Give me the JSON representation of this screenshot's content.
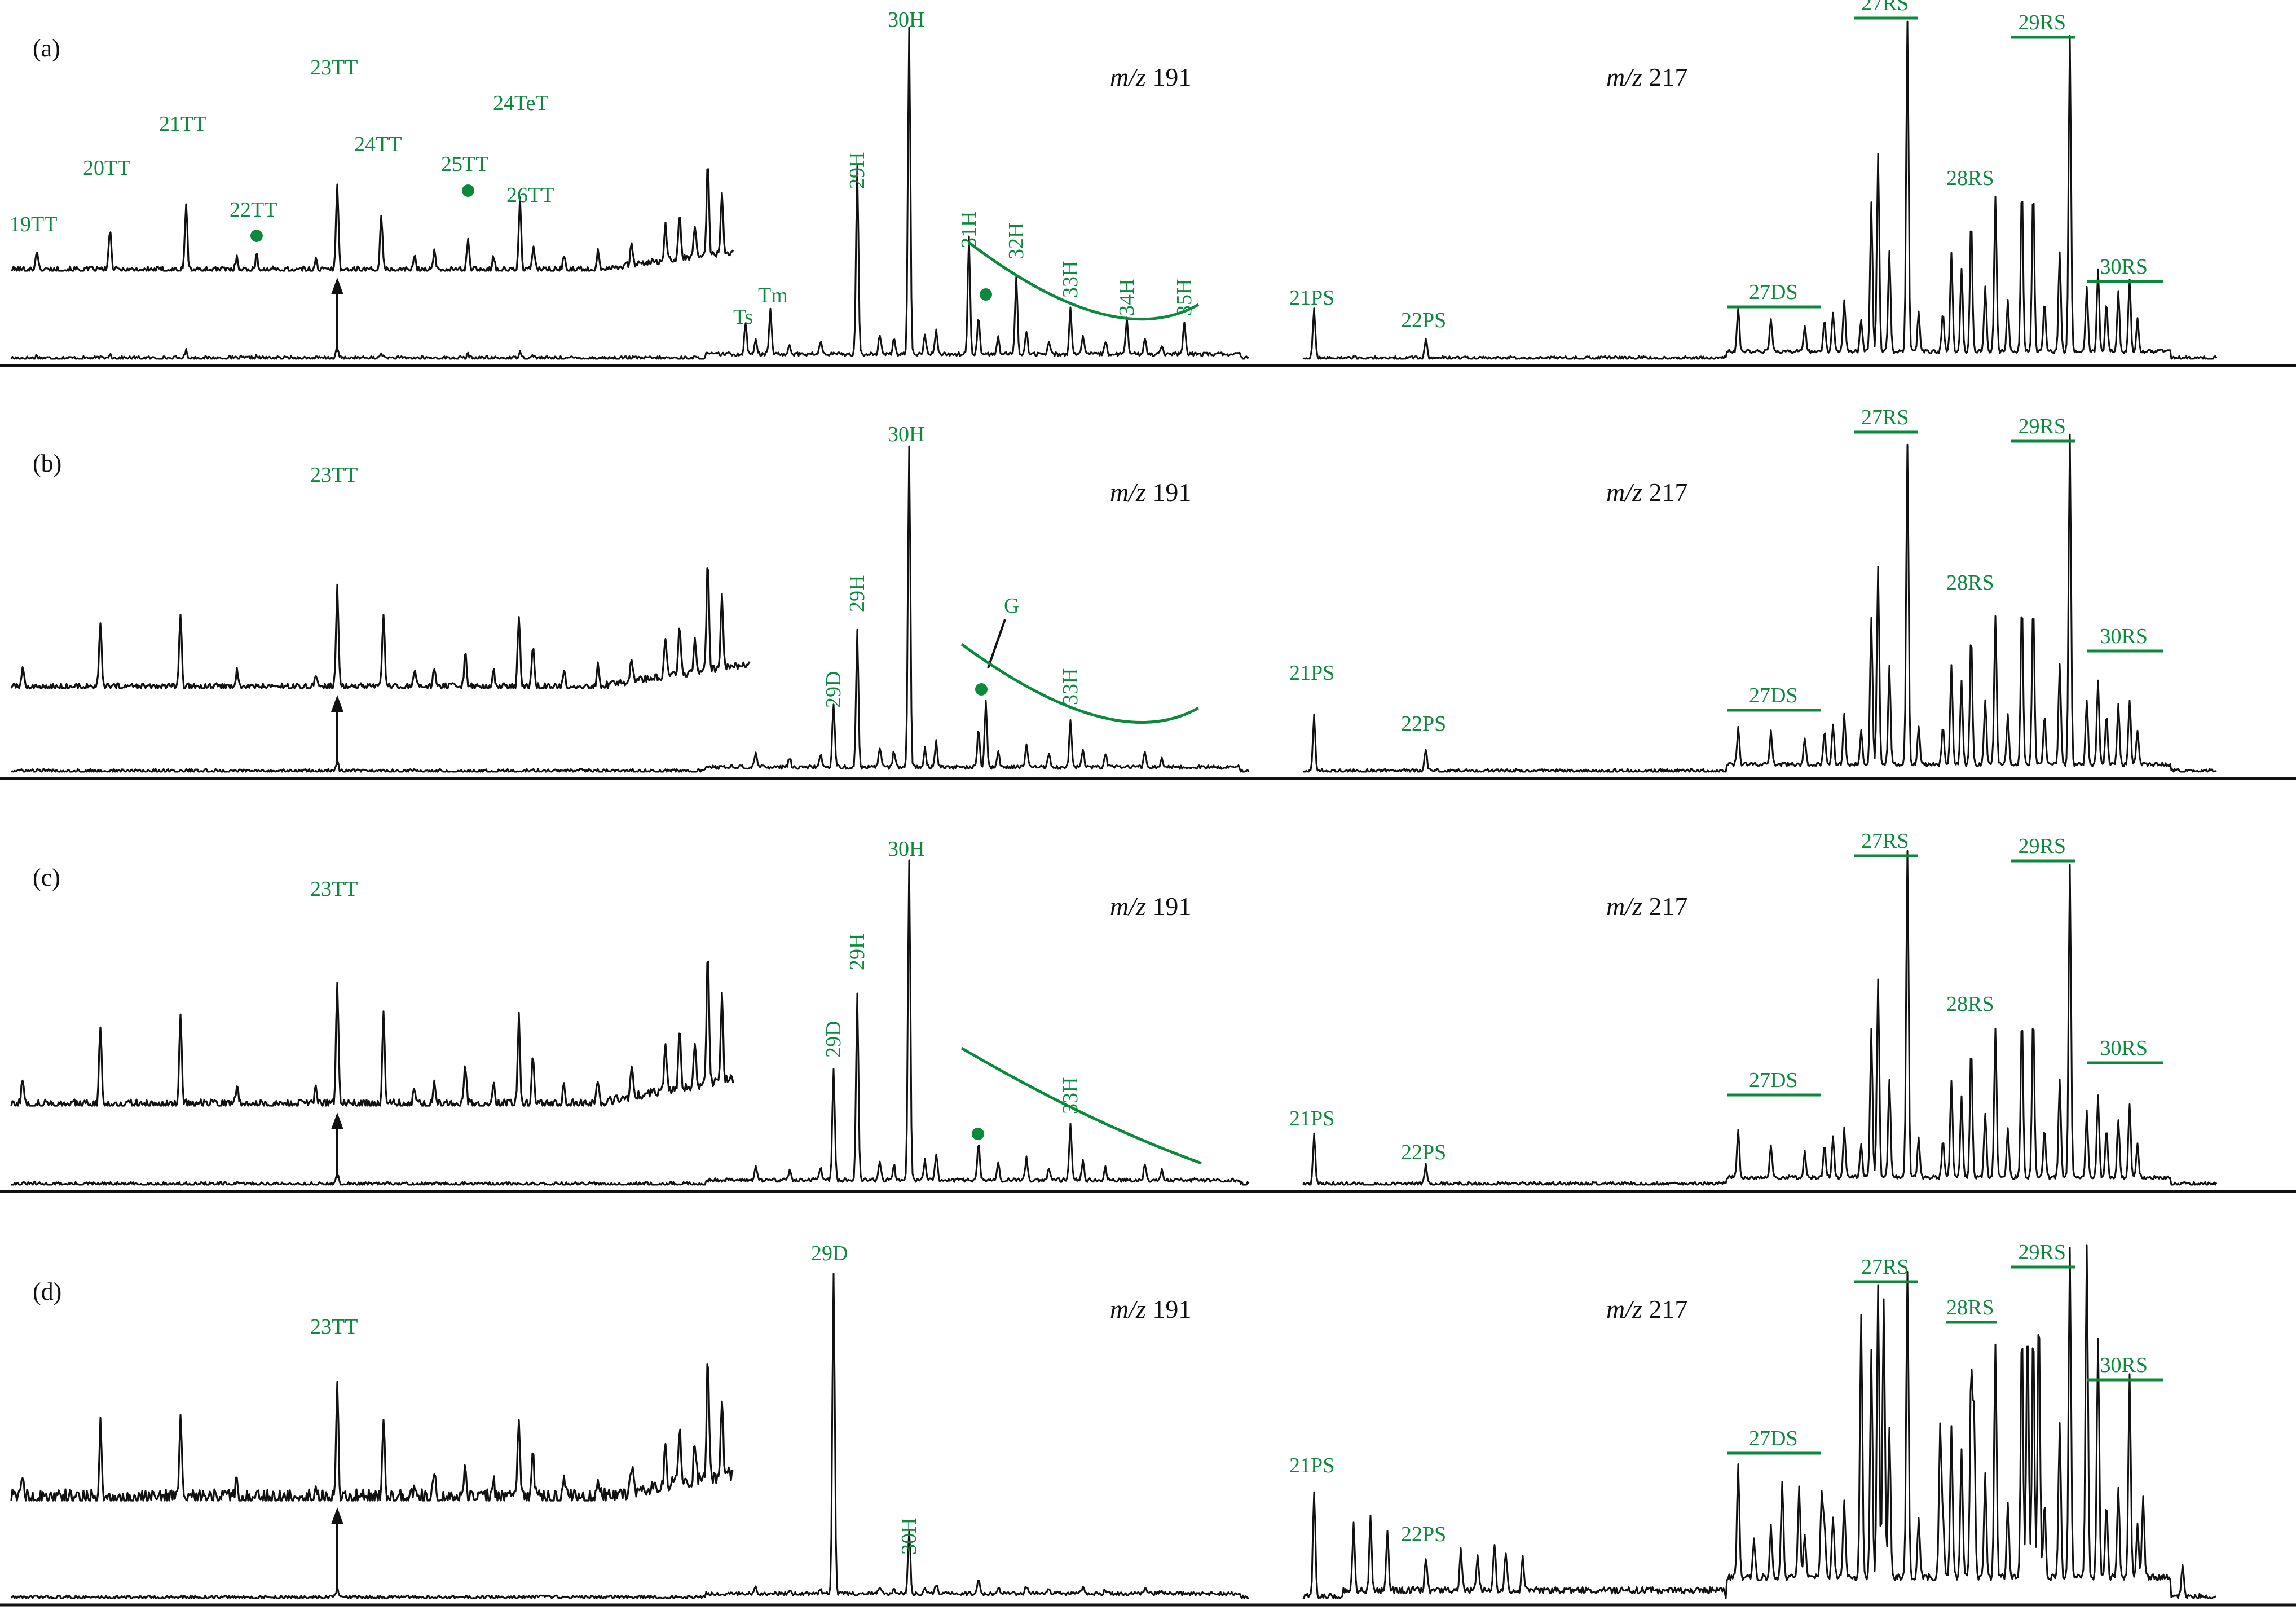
{
  "colors": {
    "annotation": "#0b8a3c",
    "trace": "#111111",
    "background": "#ffffff"
  },
  "chart_data": [
    {
      "type": "line",
      "panel": "(a)",
      "ion_left": {
        "prefix": "m/z",
        "value": "191"
      },
      "ion_right": {
        "prefix": "m/z",
        "value": "217"
      },
      "tricyclic_labels": [
        "19TT",
        "20TT",
        "21TT",
        "22TT",
        "23TT",
        "24TT",
        "25TT",
        "24TeT",
        "26TT"
      ],
      "hopane_labels": [
        "Ts",
        "Tm",
        "29H",
        "30H",
        "31H",
        "32H",
        "33H",
        "34H",
        "35H"
      ],
      "sterane_labels": [
        "21PS",
        "22PS",
        "27DS",
        "27RS",
        "28RS",
        "29RS",
        "30RS"
      ],
      "markers": [
        "22TT",
        "25TT",
        "31H"
      ],
      "peaks_m191": {
        "19TT": 0.11,
        "20TT": 0.24,
        "21TT": 0.38,
        "22TT": 0.08,
        "23TT": 0.5,
        "24TT": 0.3,
        "25TT": 0.18,
        "24TeT": 0.4,
        "26TT": 0.14,
        "Ts": 0.1,
        "Tm": 0.14,
        "29H": 0.58,
        "30H": 1.0,
        "31H": 0.36,
        "32H": 0.24,
        "33H": 0.14,
        "34H": 0.11,
        "35H": 0.1
      },
      "peaks_m217": {
        "21PS": 0.15,
        "22PS": 0.06,
        "27DS": 0.13,
        "27RS": 1.0,
        "28RS": 0.47,
        "29RS": 0.95,
        "30RS": 0.22
      }
    },
    {
      "type": "line",
      "panel": "(b)",
      "ion_left": {
        "prefix": "m/z",
        "value": "191"
      },
      "ion_right": {
        "prefix": "m/z",
        "value": "217"
      },
      "tricyclic_labels": [
        "23TT"
      ],
      "hopane_labels": [
        "29D",
        "29H",
        "30H",
        "G",
        "33H"
      ],
      "sterane_labels": [
        "21PS",
        "22PS",
        "27DS",
        "27RS",
        "28RS",
        "29RS",
        "30RS"
      ],
      "markers": [
        "G"
      ],
      "peaks_m191": {
        "23TT": 0.5,
        "29D": 0.2,
        "29H": 0.42,
        "30H": 1.0,
        "G": 0.2,
        "33H": 0.14
      },
      "peaks_m217": {
        "21PS": 0.17,
        "22PS": 0.07,
        "27DS": 0.11,
        "27RS": 0.97,
        "28RS": 0.45,
        "29RS": 1.0,
        "30RS": 0.2
      }
    },
    {
      "type": "line",
      "panel": "(c)",
      "ion_left": {
        "prefix": "m/z",
        "value": "191"
      },
      "ion_right": {
        "prefix": "m/z",
        "value": "217"
      },
      "tricyclic_labels": [
        "23TT"
      ],
      "hopane_labels": [
        "29D",
        "29H",
        "30H",
        "33H"
      ],
      "sterane_labels": [
        "21PS",
        "22PS",
        "27DS",
        "27RS",
        "28RS",
        "29RS",
        "30RS"
      ],
      "markers": [
        "G"
      ],
      "peaks_m191": {
        "23TT": 0.5,
        "29D": 0.35,
        "29H": 0.58,
        "30H": 1.0,
        "33H": 0.18
      },
      "peaks_m217": {
        "21PS": 0.15,
        "22PS": 0.06,
        "27DS": 0.15,
        "27RS": 1.0,
        "28RS": 0.45,
        "29RS": 0.95,
        "30RS": 0.22
      }
    },
    {
      "type": "line",
      "panel": "(d)",
      "ion_left": {
        "prefix": "m/z",
        "value": "191"
      },
      "ion_right": {
        "prefix": "m/z",
        "value": "217"
      },
      "tricyclic_labels": [
        "23TT"
      ],
      "hopane_labels": [
        "29D",
        "30H"
      ],
      "sterane_labels": [
        "21PS",
        "22PS",
        "27DS",
        "27RS",
        "28RS",
        "29RS",
        "30RS"
      ],
      "markers": [],
      "peaks_m191": {
        "23TT": 0.5,
        "29D": 1.0,
        "30H": 0.2
      },
      "peaks_m217": {
        "21PS": 0.33,
        "22PS": 0.1,
        "27DS": 0.35,
        "27RS": 0.93,
        "28RS": 0.72,
        "29RS": 1.0,
        "30RS": 0.62
      }
    }
  ]
}
